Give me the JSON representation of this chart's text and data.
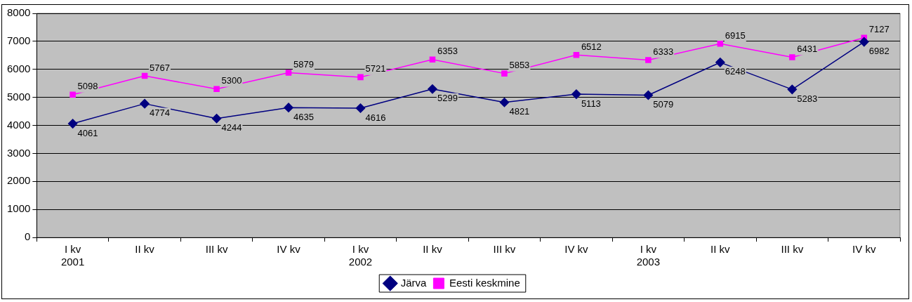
{
  "chart_data": {
    "type": "line",
    "categories": [
      "I kv\n2001",
      "II kv",
      "III kv",
      "IV kv",
      "I kv\n2002",
      "II kv",
      "III kv",
      "IV kv",
      "I kv\n2003",
      "II kv",
      "III kv",
      "IV kv"
    ],
    "series": [
      {
        "name": "Järva",
        "color": "#000080",
        "marker": "diamond",
        "values": [
          4061,
          4774,
          4244,
          4635,
          4616,
          5299,
          4821,
          5113,
          5079,
          6248,
          5283,
          6982
        ]
      },
      {
        "name": "Eesti keskmine",
        "color": "#ff00ff",
        "marker": "square",
        "values": [
          5098,
          5767,
          5300,
          5879,
          5721,
          6353,
          5853,
          6512,
          6333,
          6915,
          6431,
          7127
        ]
      }
    ],
    "ylim": [
      0,
      8000
    ],
    "yticks": [
      0,
      1000,
      2000,
      3000,
      4000,
      5000,
      6000,
      7000,
      8000
    ],
    "grid": "y",
    "legend": "bottom",
    "data_labels": true,
    "line_style": "solid"
  }
}
